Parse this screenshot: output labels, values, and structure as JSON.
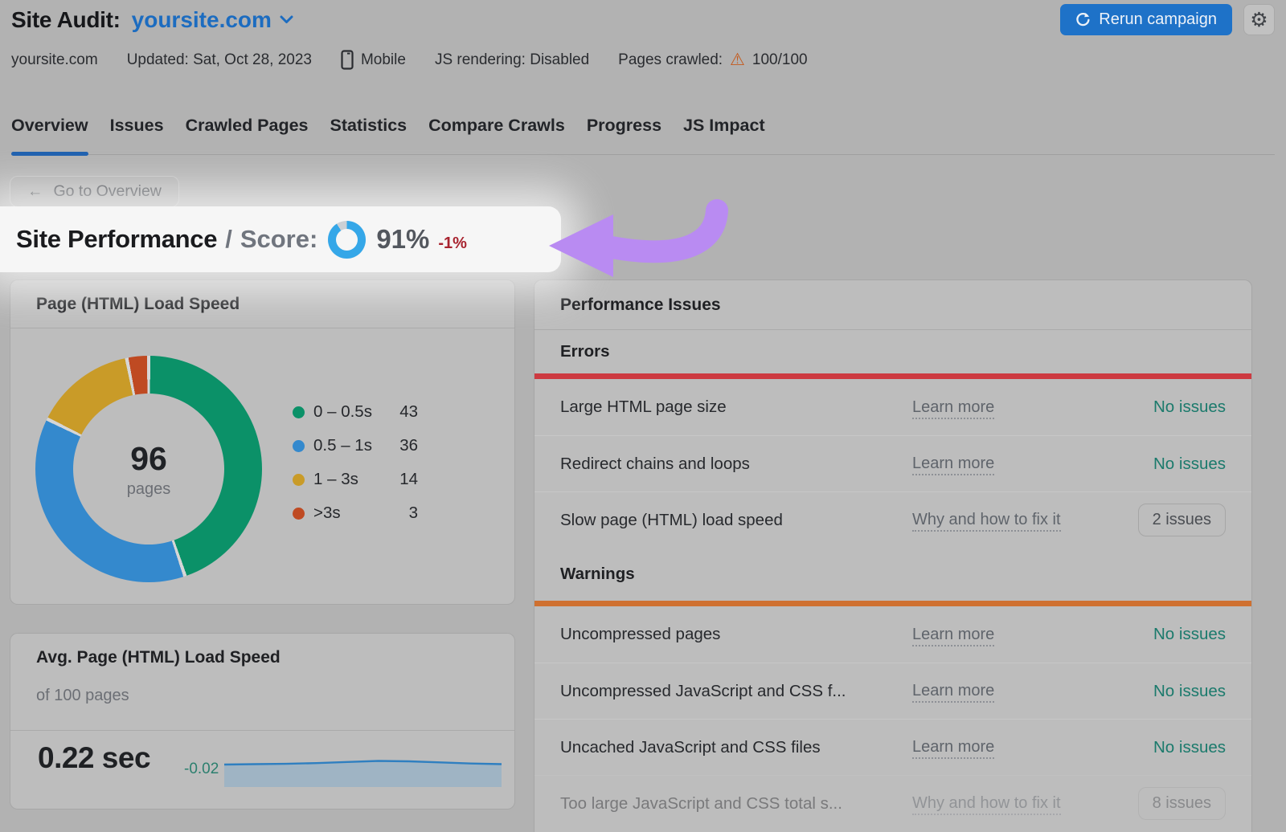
{
  "header": {
    "title": "Site Audit:",
    "project": "yoursite.com",
    "rerun_button": "Rerun campaign",
    "meta": {
      "domain": "yoursite.com",
      "updated": "Updated: Sat, Oct 28, 2023",
      "device": "Mobile",
      "js_rendering": "JS rendering: Disabled",
      "pages_crawled_label": "Pages crawled:",
      "pages_crawled_value": "100/100"
    }
  },
  "tabs": [
    {
      "label": "Overview",
      "active": true
    },
    {
      "label": "Issues",
      "active": false
    },
    {
      "label": "Crawled Pages",
      "active": false
    },
    {
      "label": "Statistics",
      "active": false
    },
    {
      "label": "Compare Crawls",
      "active": false
    },
    {
      "label": "Progress",
      "active": false
    },
    {
      "label": "JS Impact",
      "active": false
    }
  ],
  "back_button": "Go to Overview",
  "score_banner": {
    "title": "Site Performance",
    "separator": "/",
    "score_label": "Score:",
    "score_value": "91%",
    "score_percent": 91,
    "score_delta": "-1%"
  },
  "load_speed_card": {
    "title": "Page (HTML) Load Speed",
    "center_value": "96",
    "center_label": "pages",
    "legend": [
      {
        "label": "0 – 0.5s",
        "value": "43",
        "color": "#0b9168"
      },
      {
        "label": "0.5 – 1s",
        "value": "36",
        "color": "#3489cd"
      },
      {
        "label": "1 – 3s",
        "value": "14",
        "color": "#c99b28"
      },
      {
        "label": ">3s",
        "value": "3",
        "color": "#bf4a22"
      }
    ]
  },
  "avg_speed_card": {
    "title": "Avg. Page (HTML) Load Speed",
    "subtitle": "of 100 pages",
    "value": "0.22 sec",
    "delta": "-0.02"
  },
  "issues_card": {
    "title": "Performance Issues",
    "sections": [
      {
        "name": "Errors",
        "rows": [
          {
            "label": "Large HTML page size",
            "link": "Learn more",
            "status": "No issues"
          },
          {
            "label": "Redirect chains and loops",
            "link": "Learn more",
            "status": "No issues"
          },
          {
            "label": "Slow page (HTML) load speed",
            "link": "Why and how to fix it",
            "status": "2 issues"
          }
        ]
      },
      {
        "name": "Warnings",
        "rows": [
          {
            "label": "Uncompressed pages",
            "link": "Learn more",
            "status": "No issues"
          },
          {
            "label": "Uncompressed JavaScript and CSS f...",
            "link": "Learn more",
            "status": "No issues"
          },
          {
            "label": "Uncached JavaScript and CSS files",
            "link": "Learn more",
            "status": "No issues"
          },
          {
            "label": "Too large JavaScript and CSS total s...",
            "link": "Why and how to fix it",
            "status": "8 issues"
          }
        ]
      }
    ]
  },
  "colors": {
    "accent_blue": "#1c6cc0",
    "button_blue": "#1e72c8",
    "tab_underline_blue": "#1d5fae",
    "score_ring_blue": "#35a7e8",
    "score_ring_rest": "#ccd0d5",
    "ok_green": "#1b7a6c",
    "delta_green": "#2b7f6e",
    "delta_red": "#a8232f",
    "error_red": "#cd3a41",
    "warning_orange": "#cf7030",
    "highlight_purple": "#b98bf2",
    "sparkline_line": "#2f7fc0",
    "sparkline_fill": "#9fb4c4"
  },
  "chart_data": [
    {
      "type": "pie",
      "donut": true,
      "title": "Page (HTML) Load Speed",
      "categories": [
        "0 – 0.5s",
        "0.5 – 1s",
        "1 – 3s",
        ">3s"
      ],
      "values": [
        43,
        36,
        14,
        3
      ],
      "colors": [
        "#0b9168",
        "#3489cd",
        "#c99b28",
        "#bf4a22"
      ],
      "center_value": 96,
      "center_label": "pages",
      "legend_position": "right"
    },
    {
      "type": "pie",
      "donut": true,
      "title": "Site Performance Score",
      "values": [
        91,
        9
      ],
      "colors": [
        "#35a7e8",
        "#ccd0d5"
      ]
    },
    {
      "type": "area",
      "title": "Avg. Page (HTML) Load Speed trend (sec, estimated)",
      "values": [
        0.22,
        0.221,
        0.222,
        0.224,
        0.227,
        0.23,
        0.229,
        0.226,
        0.223,
        0.221
      ],
      "line_color": "#2f7fc0",
      "fill_color": "#9fb4c4"
    }
  ]
}
